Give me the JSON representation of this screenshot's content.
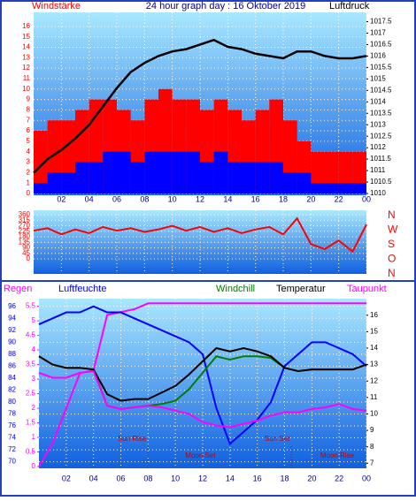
{
  "chart_data": [
    {
      "type": "combo",
      "title": "24 hour graph day : 16 Oktober 2019",
      "y_label": "Windstärke",
      "y2_label": "Luftdruck",
      "xlim": [
        0,
        24
      ],
      "xticks": [
        {
          "value": 2,
          "label": "02"
        },
        {
          "value": 4,
          "label": "04"
        },
        {
          "value": 6,
          "label": "06"
        },
        {
          "value": 8,
          "label": "08"
        },
        10,
        12,
        14,
        16,
        18,
        20,
        22,
        {
          "value": 24,
          "label": "00"
        }
      ],
      "ylim": [
        0,
        17
      ],
      "yticks": [
        0,
        1,
        2,
        3,
        4,
        5,
        6,
        7,
        8,
        9,
        10,
        11,
        12,
        13,
        14,
        15,
        16
      ],
      "y2lim": [
        1010,
        1017.75
      ],
      "y2ticks": [
        1010,
        1010.5,
        1011,
        1011.5,
        1012,
        1012.5,
        1013,
        1013.5,
        1014,
        1014.5,
        1015,
        1015.5,
        1016,
        1016.5,
        1017,
        1017.5
      ],
      "grid": true,
      "series": [
        {
          "type": "bar",
          "color": "#ff0000",
          "x": [
            0,
            1,
            2,
            3,
            4,
            5,
            6,
            7,
            8,
            9,
            10,
            11,
            12,
            13,
            14,
            15,
            16,
            17,
            18,
            19,
            20,
            21,
            22,
            23
          ],
          "values": [
            6,
            7,
            7,
            8,
            9,
            9,
            8,
            7,
            9,
            10,
            9,
            9,
            8,
            9,
            8,
            7,
            8,
            9,
            7,
            5,
            4,
            4,
            4,
            4
          ]
        },
        {
          "type": "bar",
          "color": "#0000ff",
          "x": [
            0,
            1,
            2,
            3,
            4,
            5,
            6,
            7,
            8,
            9,
            10,
            11,
            12,
            13,
            14,
            15,
            16,
            17,
            18,
            19,
            20,
            21,
            22,
            23
          ],
          "values": [
            1,
            2,
            2,
            3,
            3,
            4,
            4,
            3,
            4,
            4,
            4,
            4,
            3,
            4,
            3,
            3,
            3,
            3,
            2,
            2,
            1,
            1,
            1,
            1
          ]
        },
        {
          "type": "line",
          "axis": "y2",
          "color": "#000000",
          "x": [
            0,
            1,
            2,
            3,
            4,
            5,
            6,
            7,
            8,
            9,
            10,
            11,
            12,
            13,
            14,
            15,
            16,
            17,
            18,
            19,
            20,
            21,
            22,
            23,
            24
          ],
          "values": [
            1010.9,
            1011.5,
            1011.9,
            1012.4,
            1013.0,
            1013.8,
            1014.6,
            1015.3,
            1015.7,
            1016.0,
            1016.2,
            1016.3,
            1016.5,
            1016.7,
            1016.4,
            1016.3,
            1016.1,
            1016.0,
            1015.9,
            1016.2,
            1016.2,
            1016.0,
            1015.9,
            1015.9,
            1016.0
          ]
        }
      ]
    },
    {
      "type": "combo",
      "compass": [
        "N",
        "W",
        "S",
        "O",
        "N"
      ],
      "xlim": [
        0,
        24
      ],
      "xticks": [
        2,
        4,
        6,
        8,
        10,
        12,
        14,
        16,
        18,
        20,
        22,
        24
      ],
      "ylim": [
        0,
        360
      ],
      "yticks": [
        0,
        45,
        90,
        135,
        180,
        225,
        270,
        315,
        360
      ],
      "grid": true,
      "series": [
        {
          "type": "line",
          "color": "#ff0000",
          "x": [
            0,
            1,
            2,
            3,
            4,
            5,
            6,
            7,
            8,
            9,
            10,
            11,
            12,
            13,
            14,
            15,
            16,
            17,
            18,
            19,
            20,
            21,
            22,
            23,
            24
          ],
          "values": [
            230,
            250,
            200,
            240,
            210,
            260,
            230,
            250,
            220,
            240,
            270,
            230,
            260,
            220,
            250,
            210,
            240,
            260,
            200,
            330,
            120,
            80,
            150,
            60,
            280
          ]
        }
      ]
    },
    {
      "type": "combo",
      "xlim": [
        0,
        24
      ],
      "xticks": [
        {
          "value": 2,
          "label": "02"
        },
        {
          "value": 4,
          "label": "04"
        },
        {
          "value": 6,
          "label": "06"
        },
        {
          "value": 8,
          "label": "08"
        },
        10,
        12,
        14,
        16,
        18,
        20,
        22,
        {
          "value": 24,
          "label": "00"
        }
      ],
      "ylim": [
        69.2,
        97
      ],
      "yticks": [
        70,
        72,
        74,
        76,
        78,
        80,
        82,
        84,
        86,
        88,
        90,
        92,
        94,
        96
      ],
      "y2lim": [
        6.8,
        16.9
      ],
      "y2ticks": [
        7,
        8,
        9,
        10,
        11,
        12,
        13,
        14,
        15,
        16
      ],
      "y3lim": [
        0,
        5.7
      ],
      "y3ticks": [
        0,
        0.5,
        1,
        1.5,
        2,
        2.5,
        3,
        3.5,
        4,
        4.5,
        5,
        5.5
      ],
      "grid": true,
      "series": [
        {
          "name": "Regen",
          "type": "line",
          "axis": "y3",
          "color": "#ff00ff",
          "x": [
            0,
            1,
            2,
            3,
            4,
            5,
            6,
            7,
            8,
            9,
            10,
            11,
            12,
            13,
            14,
            15,
            16,
            17,
            18,
            19,
            20,
            21,
            22,
            23,
            24
          ],
          "values": [
            0,
            0.8,
            2.0,
            3.2,
            3.3,
            5.2,
            5.3,
            5.4,
            5.6,
            5.6,
            5.6,
            5.6,
            5.6,
            5.6,
            5.6,
            5.6,
            5.6,
            5.6,
            5.6,
            5.6,
            5.6,
            5.6,
            5.6,
            5.6,
            5.6
          ]
        },
        {
          "name": "Luftfeuchte",
          "type": "line",
          "color": "#0000ff",
          "x": [
            0,
            1,
            2,
            3,
            4,
            5,
            6,
            7,
            8,
            9,
            10,
            11,
            12,
            13,
            14,
            15,
            16,
            17,
            18,
            19,
            20,
            21,
            22,
            23,
            24
          ],
          "values": [
            93,
            94,
            95,
            95,
            96,
            95,
            95,
            94,
            93,
            92,
            91,
            90,
            88,
            79,
            73,
            75,
            77,
            80,
            86,
            88,
            90,
            90,
            89,
            88,
            86
          ]
        },
        {
          "name": "Windchill",
          "type": "line",
          "axis": "y2",
          "color": "#008000",
          "x": [
            0,
            1,
            2,
            3,
            4,
            5,
            6,
            7,
            8,
            9,
            10,
            11,
            12,
            13,
            14,
            15,
            16,
            17,
            18,
            19,
            20,
            21,
            22,
            23,
            24
          ],
          "values": [
            13.5,
            13,
            12.8,
            12.8,
            12.7,
            10.5,
            10.3,
            10.4,
            10.5,
            10.6,
            10.8,
            11.5,
            12.5,
            13.5,
            13.3,
            13.5,
            13.5,
            13.4,
            12.8,
            12.6,
            12.7,
            12.7,
            12.7,
            12.7,
            13
          ]
        },
        {
          "name": "Temperatur",
          "type": "line",
          "axis": "y2",
          "color": "#000000",
          "x": [
            0,
            1,
            2,
            3,
            4,
            5,
            6,
            7,
            8,
            9,
            10,
            11,
            12,
            13,
            14,
            15,
            16,
            17,
            18,
            19,
            20,
            21,
            22,
            23,
            24
          ],
          "values": [
            13.5,
            13,
            12.8,
            12.8,
            12.7,
            11.2,
            10.8,
            10.9,
            10.9,
            11.3,
            11.7,
            12.4,
            13.2,
            14,
            13.8,
            14,
            13.8,
            13.5,
            12.8,
            12.6,
            12.7,
            12.7,
            12.7,
            12.7,
            13
          ]
        },
        {
          "name": "Taupunkt",
          "type": "line",
          "axis": "y2",
          "color": "#ff00ff",
          "x": [
            0,
            1,
            2,
            3,
            4,
            5,
            6,
            7,
            8,
            9,
            10,
            11,
            12,
            13,
            14,
            15,
            16,
            17,
            18,
            19,
            20,
            21,
            22,
            23,
            24
          ],
          "values": [
            12.5,
            12.2,
            12.2,
            12.5,
            12.6,
            10.5,
            10.3,
            10.4,
            10.5,
            10.4,
            10.2,
            10,
            9.5,
            9.3,
            9.2,
            9.4,
            9.6,
            9.9,
            10.1,
            10.1,
            10.3,
            10.4,
            10.6,
            10.3,
            10.2
          ]
        }
      ],
      "annotations": [
        {
          "text": "Sun Rise",
          "x": 8.0
        },
        {
          "text": "Moon Set",
          "x": 10.2
        },
        {
          "text": "Sun Set",
          "x": 18.5
        },
        {
          "text": "Moon Rise",
          "x": 20.1
        }
      ]
    }
  ]
}
